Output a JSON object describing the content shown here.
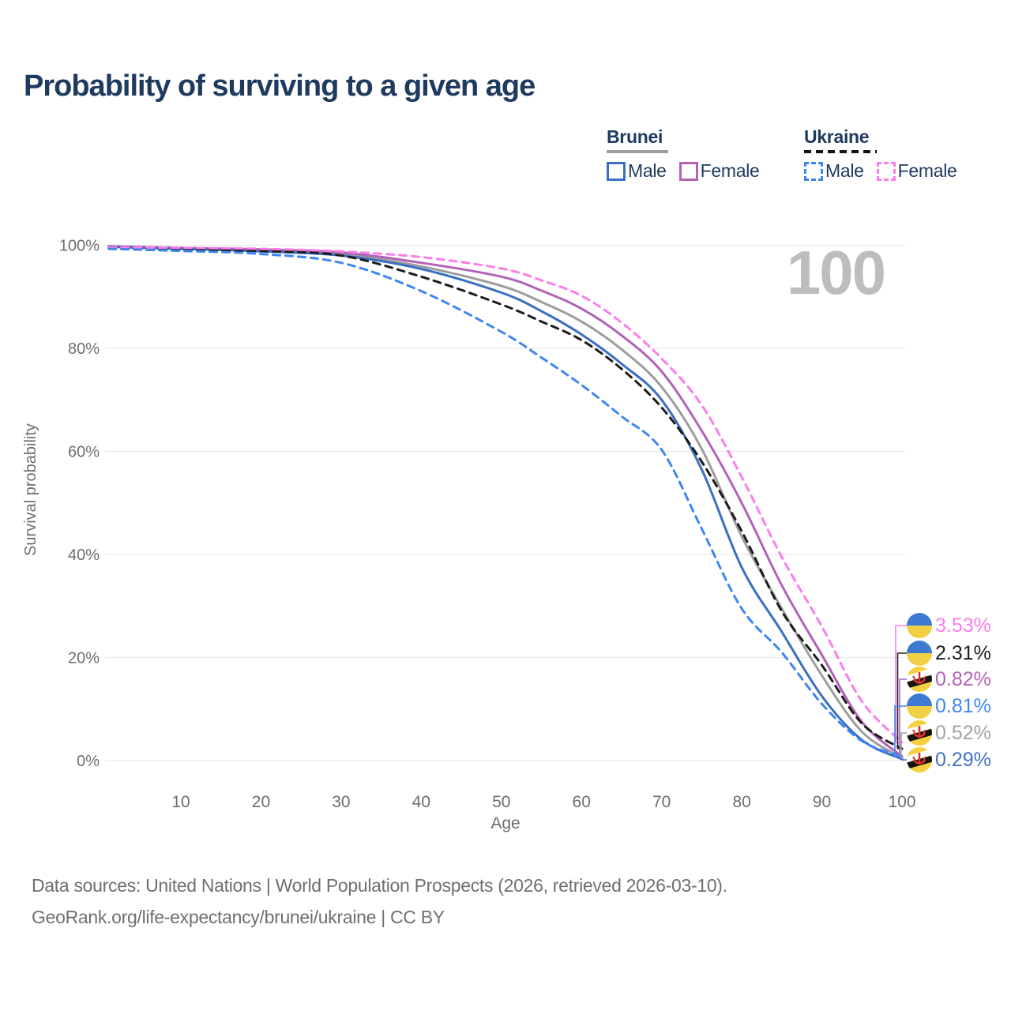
{
  "title": "Probability of surviving to a given age",
  "legend": {
    "groups": [
      {
        "name": "Brunei",
        "style": "solid",
        "underline_color": "#9e9e9e",
        "items": [
          {
            "label": "Male",
            "color": "#3b6fc0"
          },
          {
            "label": "Female",
            "color": "#b163b5"
          }
        ]
      },
      {
        "name": "Ukraine",
        "style": "dashed",
        "underline_color": "#141414",
        "items": [
          {
            "label": "Male",
            "color": "#3f86f2"
          },
          {
            "label": "Female",
            "color": "#fb7deb"
          }
        ]
      }
    ]
  },
  "watermark_age": "100",
  "chart_data": {
    "type": "line",
    "title": "Probability of surviving to a given age",
    "xlabel": "Age",
    "ylabel": "Survival probability",
    "xlim": [
      0,
      100
    ],
    "ylim": [
      0,
      100
    ],
    "grid": "horizontal",
    "x_ticks": [
      10,
      20,
      30,
      40,
      50,
      60,
      70,
      80,
      90,
      100
    ],
    "y_ticks": [
      0,
      20,
      40,
      60,
      80,
      100
    ],
    "y_tick_suffix": "%",
    "x": [
      1,
      10,
      20,
      30,
      40,
      50,
      55,
      60,
      65,
      70,
      75,
      80,
      85,
      90,
      95,
      100
    ],
    "series": [
      {
        "name": "Brunei Both sexes",
        "country": "Brunei",
        "sex": "both",
        "color": "#9d9d9d",
        "dash": "solid",
        "values": [
          99.75,
          99.4,
          99.0,
          98.3,
          95.9,
          92.1,
          89.0,
          85.2,
          79.8,
          72.5,
          60.5,
          43.5,
          29.5,
          16.5,
          5.6,
          0.52
        ]
      },
      {
        "name": "Brunei Female",
        "country": "Brunei",
        "sex": "female",
        "color": "#b163b5",
        "dash": "solid",
        "values": [
          99.8,
          99.5,
          99.2,
          98.6,
          96.6,
          93.9,
          91.2,
          87.7,
          82.5,
          75.5,
          64.0,
          50.0,
          34.0,
          20.5,
          7.5,
          0.82
        ]
      },
      {
        "name": "Brunei Male",
        "country": "Brunei",
        "sex": "male",
        "color": "#3b6fc0",
        "dash": "solid",
        "values": [
          99.7,
          99.3,
          98.8,
          98.0,
          95.4,
          90.8,
          87.2,
          82.7,
          77.0,
          70.0,
          56.5,
          37.5,
          25.0,
          12.5,
          4.0,
          0.29
        ]
      },
      {
        "name": "Ukraine Both sexes",
        "country": "Ukraine",
        "sex": "both",
        "color": "#1c1c1c",
        "dash": "dashed",
        "values": [
          99.45,
          99.2,
          98.9,
          98.0,
          93.9,
          88.5,
          85.2,
          81.6,
          76.0,
          68.5,
          58.0,
          44.5,
          29.0,
          18.5,
          7.2,
          2.31
        ]
      },
      {
        "name": "Ukraine Female",
        "country": "Ukraine",
        "sex": "female",
        "color": "#fb7deb",
        "dash": "dashed",
        "values": [
          99.6,
          99.5,
          99.3,
          98.8,
          97.7,
          95.5,
          93.2,
          90.2,
          85.0,
          78.0,
          69.0,
          55.0,
          39.5,
          26.0,
          11.5,
          3.53
        ]
      },
      {
        "name": "Ukraine Male",
        "country": "Ukraine",
        "sex": "male",
        "color": "#3f86f2",
        "dash": "dashed",
        "values": [
          99.3,
          98.9,
          98.3,
          96.6,
          91.1,
          83.2,
          78.2,
          72.9,
          66.8,
          60.3,
          45.0,
          29.5,
          21.0,
          11.0,
          3.8,
          0.81
        ]
      }
    ],
    "end_labels": [
      {
        "label": "3.53%",
        "value": 3.53,
        "color": "#fb7deb",
        "flag": "ukraine-flag-icon",
        "series": "Ukraine Female"
      },
      {
        "label": "2.31%",
        "value": 2.31,
        "color": "#1f1f1f",
        "flag": "ukraine-flag-icon",
        "series": "Ukraine Both sexes"
      },
      {
        "label": "0.82%",
        "value": 0.82,
        "color": "#b163b5",
        "flag": "brunei-flag-icon",
        "series": "Brunei Female"
      },
      {
        "label": "0.81%",
        "value": 0.81,
        "color": "#3f86f2",
        "flag": "ukraine-flag-icon",
        "series": "Ukraine Male"
      },
      {
        "label": "0.52%",
        "value": 0.52,
        "color": "#a3a3a3",
        "flag": "brunei-flag-icon",
        "series": "Brunei Both sexes"
      },
      {
        "label": "0.29%",
        "value": 0.29,
        "color": "#4273c4",
        "flag": "brunei-flag-icon",
        "series": "Brunei Male"
      }
    ],
    "colors": {
      "grid": "#ebebeb",
      "tick_text": "#6e6e6e",
      "axis_title": "#6e6e6e",
      "watermark": "#bdbdbd",
      "ukraine_flag_blue": "#3d7ad1",
      "ukraine_flag_yellow": "#f3cf45",
      "brunei_flag_yellow": "#f6cf3f",
      "brunei_flag_red": "#d63227"
    }
  },
  "footer": {
    "line1": "Data sources: United Nations | World Population Prospects (2026, retrieved 2026-03-10).",
    "line2": "GeoRank.org/life-expectancy/brunei/ukraine | CC BY"
  }
}
